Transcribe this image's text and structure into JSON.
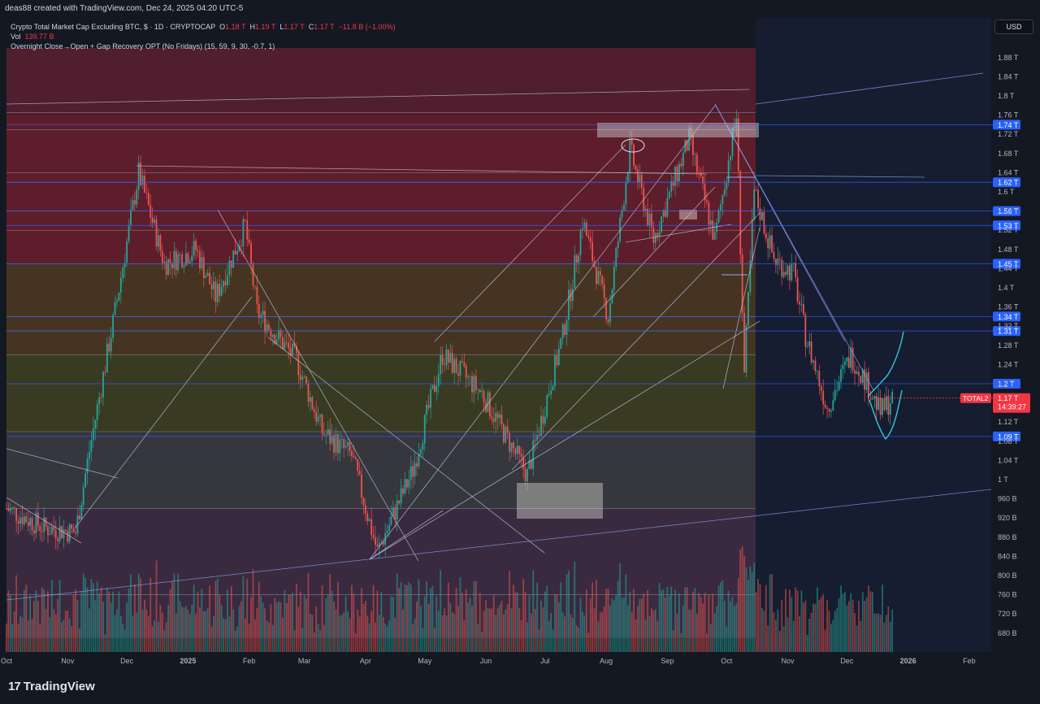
{
  "header": {
    "credit": "deas88 created with TradingView.com, Dec 24, 2025 04:20 UTC-5"
  },
  "legend": {
    "symbol": "Crypto Total Market Cap Excluding BTC, $ · 1D · CRYPTOCAP",
    "ohlc": [
      {
        "label": "O",
        "value": "1.18 T"
      },
      {
        "label": "H",
        "value": "1.19 T"
      },
      {
        "label": "L",
        "value": "1.17 T"
      },
      {
        "label": "C",
        "value": "1.17 T"
      }
    ],
    "change": "−11.8 B (−1.00%)",
    "volume_label": "Vol",
    "volume_value": "139.77 B",
    "indicator": "Overnight Close→Open + Gap Recovery OPT (No Fridays) (15, 59, 9, 30, -0.7, 1)"
  },
  "currency_button": "USD",
  "brand": {
    "name": "TradingView",
    "logo": "tradingview-logo"
  },
  "colors": {
    "background": "#141823",
    "up_candle": "#26a69a",
    "down_candle": "#ef5350",
    "level_highlight": "#2962ff",
    "last_price": "#f23645",
    "annotation": "#2ec6e0"
  },
  "chart_data": {
    "type": "candlestick",
    "symbol": "TOTAL2",
    "x_ticks": [
      "Oct",
      "Nov",
      "Dec",
      "2025",
      "Feb",
      "Mar",
      "Apr",
      "May",
      "Jun",
      "Jul",
      "Aug",
      "Sep",
      "Oct",
      "Nov",
      "Dec",
      "2026",
      "Feb"
    ],
    "y_ticks": [
      "1.88 T",
      "1.84 T",
      "1.8 T",
      "1.76 T",
      "1.72 T",
      "1.68 T",
      "1.64 T",
      "1.6 T",
      "1.56 T",
      "1.52 T",
      "1.48 T",
      "1.44 T",
      "1.4 T",
      "1.36 T",
      "1.32 T",
      "1.28 T",
      "1.24 T",
      "1.2 T",
      "1.16 T",
      "1.12 T",
      "1.08 T",
      "1.04 T",
      "1 T",
      "960 B",
      "920 B",
      "880 B",
      "840 B",
      "800 B",
      "760 B",
      "720 B",
      "680 B"
    ],
    "y_unit": "T",
    "y_range": [
      0.67,
      1.9
    ],
    "x_range": [
      "2024-10-01",
      "2026-02-28"
    ],
    "highlighted_levels": [
      {
        "value": 1.74,
        "label": "1.74 T"
      },
      {
        "value": 1.62,
        "label": "1.62 T"
      },
      {
        "value": 1.56,
        "label": "1.56 T"
      },
      {
        "value": 1.53,
        "label": "1.53 T"
      },
      {
        "value": 1.45,
        "label": "1.45 T"
      },
      {
        "value": 1.34,
        "label": "1.34 T"
      },
      {
        "value": 1.31,
        "label": "1.31 T"
      },
      {
        "value": 1.2,
        "label": "1.2 T"
      },
      {
        "value": 1.09,
        "label": "1.09 T"
      }
    ],
    "last_price": {
      "symbol": "TOTAL2",
      "value": 1.17,
      "label": "1.17 T",
      "countdown": "14:39:27"
    },
    "price_path": [
      {
        "date": "2024-10-01",
        "value": 0.94
      },
      {
        "date": "2024-10-20",
        "value": 0.9
      },
      {
        "date": "2024-11-05",
        "value": 0.89
      },
      {
        "date": "2024-11-12",
        "value": 1.06
      },
      {
        "date": "2024-11-25",
        "value": 1.35
      },
      {
        "date": "2024-12-07",
        "value": 1.64
      },
      {
        "date": "2024-12-20",
        "value": 1.45
      },
      {
        "date": "2025-01-05",
        "value": 1.48
      },
      {
        "date": "2025-01-15",
        "value": 1.38
      },
      {
        "date": "2025-01-30",
        "value": 1.53
      },
      {
        "date": "2025-02-05",
        "value": 1.35
      },
      {
        "date": "2025-02-25",
        "value": 1.25
      },
      {
        "date": "2025-03-10",
        "value": 1.1
      },
      {
        "date": "2025-03-25",
        "value": 1.05
      },
      {
        "date": "2025-04-07",
        "value": 0.85
      },
      {
        "date": "2025-04-25",
        "value": 1.02
      },
      {
        "date": "2025-05-10",
        "value": 1.26
      },
      {
        "date": "2025-05-30",
        "value": 1.18
      },
      {
        "date": "2025-06-22",
        "value": 1.01
      },
      {
        "date": "2025-07-10",
        "value": 1.3
      },
      {
        "date": "2025-07-20",
        "value": 1.54
      },
      {
        "date": "2025-08-02",
        "value": 1.34
      },
      {
        "date": "2025-08-13",
        "value": 1.69
      },
      {
        "date": "2025-08-25",
        "value": 1.5
      },
      {
        "date": "2025-09-12",
        "value": 1.71
      },
      {
        "date": "2025-09-25",
        "value": 1.5
      },
      {
        "date": "2025-10-06",
        "value": 1.76
      },
      {
        "date": "2025-10-10",
        "value": 1.22
      },
      {
        "date": "2025-10-15",
        "value": 1.6
      },
      {
        "date": "2025-10-25",
        "value": 1.46
      },
      {
        "date": "2025-11-04",
        "value": 1.43
      },
      {
        "date": "2025-11-10",
        "value": 1.3
      },
      {
        "date": "2025-11-21",
        "value": 1.15
      },
      {
        "date": "2025-12-03",
        "value": 1.26
      },
      {
        "date": "2025-12-10",
        "value": 1.21
      },
      {
        "date": "2025-12-18",
        "value": 1.14
      },
      {
        "date": "2025-12-24",
        "value": 1.17
      }
    ],
    "zones": [
      {
        "from": 1.76,
        "to": 1.9,
        "color": "#5a2030"
      },
      {
        "from": 1.45,
        "to": 1.76,
        "color": "#6b1f2c"
      },
      {
        "from": 1.26,
        "to": 1.45,
        "color": "#4d3a22"
      },
      {
        "from": 1.1,
        "to": 1.26,
        "color": "#3f4122"
      },
      {
        "from": 0.94,
        "to": 1.1,
        "color": "#3c3c42"
      },
      {
        "from": 0.67,
        "to": 0.94,
        "color": "#3f2e44"
      }
    ],
    "volume_unit": "B"
  }
}
